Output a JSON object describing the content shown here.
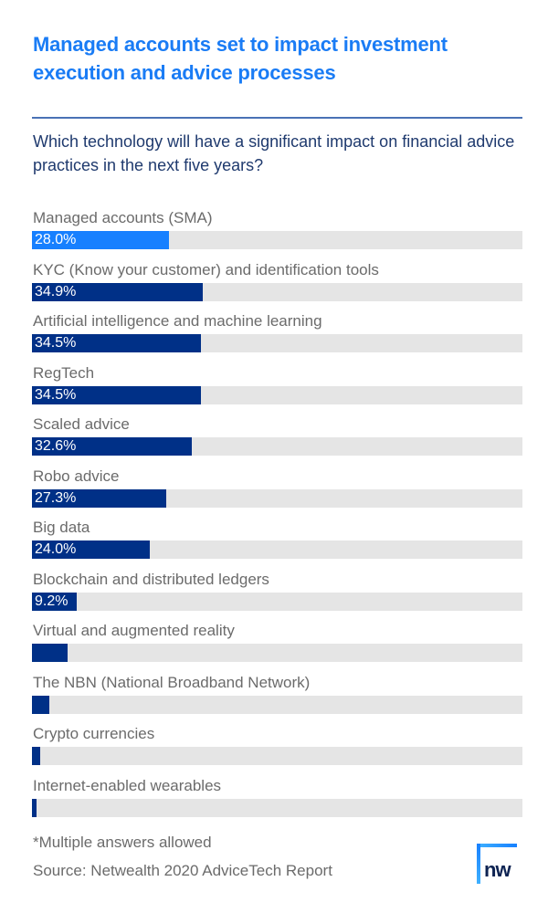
{
  "header": {
    "title": "Managed accounts set to impact investment execution and advice processes",
    "question": "Which technology will have a significant impact on financial advice practices in the next five years?"
  },
  "colors": {
    "title": "#1a7cf5",
    "highlight_bar": "#1780ff",
    "bar": "#003087",
    "track": "#e5e5e5",
    "label": "#6b6b6b"
  },
  "chart_data": {
    "type": "bar",
    "orientation": "horizontal",
    "title": "Managed accounts set to impact investment execution and advice processes",
    "subtitle": "Which technology will have a significant impact on financial advice practices in the next five years?",
    "xlabel": "",
    "ylabel": "",
    "xlim": [
      0,
      100
    ],
    "unit": "%",
    "categories": [
      "Managed accounts (SMA)",
      "KYC (Know your customer) and identification tools",
      "Artificial intelligence and machine learning",
      "RegTech",
      "Scaled advice",
      "Robo advice",
      "Big data",
      "Blockchain and distributed ledgers",
      "Virtual and augmented reality",
      "The NBN (National Broadband Network)",
      "Crypto currencies",
      "Internet-enabled wearables"
    ],
    "values": [
      28.0,
      34.9,
      34.5,
      34.5,
      32.6,
      27.3,
      24.0,
      9.2,
      7.2,
      3.5,
      1.7,
      1.0
    ],
    "data_labels": [
      "28.0%",
      "34.9%",
      "34.5%",
      "34.5%",
      "32.6%",
      "27.3%",
      "24.0%",
      "9.2%",
      "",
      "",
      "",
      ""
    ],
    "highlighted_index": 0,
    "grid": false,
    "legend": "none"
  },
  "footer": {
    "footnote": "*Multiple answers allowed",
    "source": "Source: Netwealth 2020 AdviceTech Report",
    "logo_text": "nw"
  }
}
